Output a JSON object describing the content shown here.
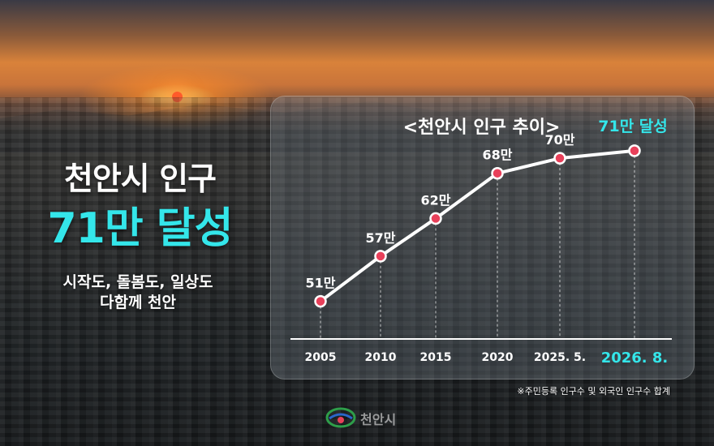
{
  "headline": {
    "line1": "천안시 인구",
    "line2": "71만 달성",
    "sub1": "시작도, 돌봄도, 일상도",
    "sub2": "다함께 천안"
  },
  "footnote": "※주민등록 인구수 및 외국인 인구수 합계",
  "logo": {
    "text": "천안시"
  },
  "colors": {
    "accent": "#34e6ea",
    "marker": "#e8405a",
    "line": "#ffffff"
  },
  "chart_data": {
    "type": "line",
    "title": "<천안시 인구 추이>",
    "categories": [
      "2005",
      "2010",
      "2015",
      "2020",
      "2025. 5.",
      "2026. 8."
    ],
    "values": [
      51,
      57,
      62,
      68,
      70,
      71
    ],
    "data_labels": [
      "51만",
      "57만",
      "62만",
      "68만",
      "70만",
      "71만 달성"
    ],
    "highlight_index": 5,
    "ylim": [
      46,
      74
    ],
    "grid": false
  }
}
